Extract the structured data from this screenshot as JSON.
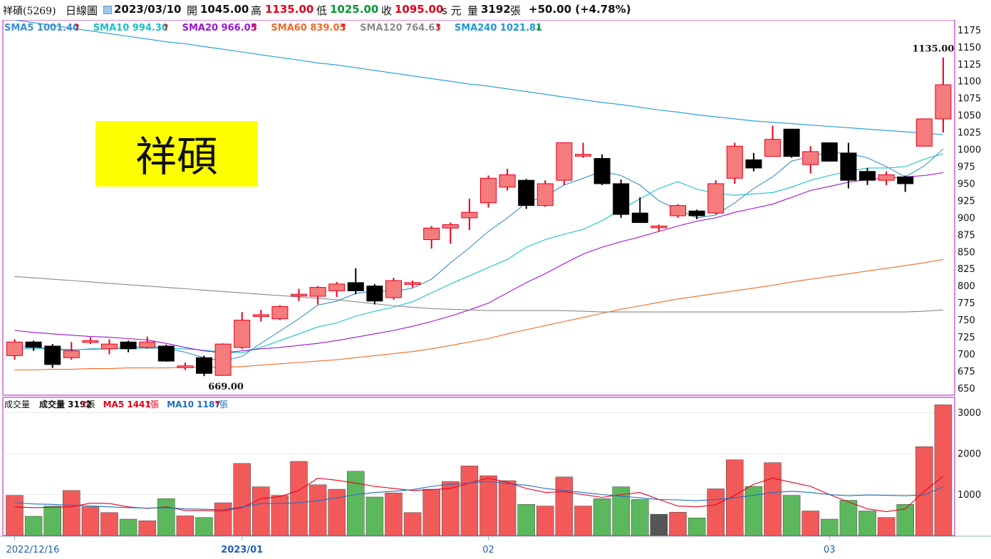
{
  "header": {
    "symbol": "祥碩(5269)",
    "period": "日線圖",
    "date": "2023/03/10",
    "open_label": "開",
    "open": "1045.00",
    "high_label": "高",
    "high": "1135.00",
    "low_label": "低",
    "low": "1025.00",
    "close_label": "收",
    "close": "1095.00",
    "unit_label": "s 元",
    "volume_label": "量",
    "volume": "3192",
    "volume_unit": "張",
    "change": "+50.00 (+4.78%)"
  },
  "watermark": "祥碩",
  "colors": {
    "up": "#f47c7c",
    "up_edge": "#e8001c",
    "down": "#000000",
    "vol_up": "#f25a5a",
    "vol_down": "#5cb85c",
    "vol_flat": "#555555",
    "sma5": "#3a8fd0",
    "sma10": "#19c2c8",
    "sma20": "#9b15d6",
    "sma60": "#f06a26",
    "sma120": "#8a8a8a",
    "sma240": "#1c9ad6",
    "vma5": "#e8001c",
    "vma10": "#1f6fbf",
    "frame": "#c03bc0",
    "watermark_bg": "#ffff00"
  },
  "legend": [
    {
      "label": "SMA5 1001.40",
      "arrow": "↑",
      "color_key": "sma5"
    },
    {
      "label": "SMA10 994.30",
      "arrow": "↑",
      "color_key": "sma10"
    },
    {
      "label": "SMA20 966.05",
      "arrow": "↑",
      "color_key": "sma20"
    },
    {
      "label": "SMA60 839.05",
      "arrow": "↑",
      "color_key": "sma60"
    },
    {
      "label": "SMA120 764.63",
      "arrow": "↑",
      "color_key": "sma120"
    },
    {
      "label": "SMA240 1021.81",
      "arrow": "↓",
      "color_key": "sma240"
    }
  ],
  "volume_legend": {
    "title": "成交量",
    "items": [
      {
        "label": "成交量 3192",
        "arrow": "↑",
        "unit": "張",
        "color": "#111111"
      },
      {
        "label": "MA5 1441",
        "arrow": "↑",
        "unit": "張",
        "color": "#e8001c"
      },
      {
        "label": "MA10 1187",
        "arrow": "↑",
        "unit": "張",
        "color": "#1f6fbf"
      }
    ]
  },
  "chart_data": {
    "type": "candlestick",
    "price_axis": {
      "ticks": [
        650,
        675,
        700,
        725,
        750,
        775,
        800,
        825,
        850,
        875,
        900,
        925,
        950,
        975,
        1000,
        1025,
        1050,
        1075,
        1100,
        1125,
        1150,
        1175
      ],
      "range": [
        640,
        1190
      ]
    },
    "volume_axis": {
      "ticks": [
        1000,
        2000,
        3000
      ],
      "range": [
        0,
        3200
      ]
    },
    "x_labels": [
      {
        "index": 0,
        "text": "2022/12/16"
      },
      {
        "index": 12,
        "text": "2023/01"
      },
      {
        "index": 25,
        "text": "02"
      },
      {
        "index": 43,
        "text": "03"
      }
    ],
    "annotations": [
      {
        "index": 49,
        "value": 1135,
        "text": "1135.00",
        "anchor": "above"
      },
      {
        "index": 11,
        "value": 669,
        "text": "669.00",
        "anchor": "below"
      }
    ],
    "candles": [
      {
        "o": 698,
        "h": 722,
        "l": 692,
        "c": 718
      },
      {
        "o": 718,
        "h": 720,
        "l": 705,
        "c": 710
      },
      {
        "o": 712,
        "h": 715,
        "l": 680,
        "c": 685
      },
      {
        "o": 695,
        "h": 718,
        "l": 692,
        "c": 705
      },
      {
        "o": 720,
        "h": 725,
        "l": 715,
        "c": 720
      },
      {
        "o": 708,
        "h": 722,
        "l": 700,
        "c": 715
      },
      {
        "o": 718,
        "h": 720,
        "l": 703,
        "c": 708
      },
      {
        "o": 710,
        "h": 726,
        "l": 708,
        "c": 718
      },
      {
        "o": 712,
        "h": 714,
        "l": 689,
        "c": 690
      },
      {
        "o": 683,
        "h": 688,
        "l": 677,
        "c": 683
      },
      {
        "o": 695,
        "h": 698,
        "l": 668,
        "c": 672
      },
      {
        "o": 669,
        "h": 716,
        "l": 669,
        "c": 715
      },
      {
        "o": 710,
        "h": 762,
        "l": 708,
        "c": 750
      },
      {
        "o": 758,
        "h": 765,
        "l": 748,
        "c": 758
      },
      {
        "o": 752,
        "h": 772,
        "l": 750,
        "c": 770
      },
      {
        "o": 788,
        "h": 796,
        "l": 778,
        "c": 788
      },
      {
        "o": 785,
        "h": 800,
        "l": 773,
        "c": 798
      },
      {
        "o": 793,
        "h": 806,
        "l": 784,
        "c": 803
      },
      {
        "o": 805,
        "h": 826,
        "l": 788,
        "c": 793
      },
      {
        "o": 800,
        "h": 803,
        "l": 773,
        "c": 778
      },
      {
        "o": 783,
        "h": 812,
        "l": 780,
        "c": 808
      },
      {
        "o": 805,
        "h": 808,
        "l": 798,
        "c": 805
      },
      {
        "o": 868,
        "h": 888,
        "l": 855,
        "c": 885
      },
      {
        "o": 885,
        "h": 893,
        "l": 862,
        "c": 890
      },
      {
        "o": 900,
        "h": 928,
        "l": 882,
        "c": 908
      },
      {
        "o": 922,
        "h": 962,
        "l": 915,
        "c": 958
      },
      {
        "o": 945,
        "h": 972,
        "l": 940,
        "c": 963
      },
      {
        "o": 955,
        "h": 957,
        "l": 913,
        "c": 918
      },
      {
        "o": 918,
        "h": 955,
        "l": 916,
        "c": 950
      },
      {
        "o": 955,
        "h": 1010,
        "l": 948,
        "c": 1010
      },
      {
        "o": 993,
        "h": 1010,
        "l": 988,
        "c": 993
      },
      {
        "o": 987,
        "h": 993,
        "l": 948,
        "c": 950
      },
      {
        "o": 950,
        "h": 956,
        "l": 900,
        "c": 905
      },
      {
        "o": 907,
        "h": 930,
        "l": 893,
        "c": 893
      },
      {
        "o": 888,
        "h": 890,
        "l": 880,
        "c": 888
      },
      {
        "o": 903,
        "h": 920,
        "l": 900,
        "c": 918
      },
      {
        "o": 910,
        "h": 912,
        "l": 898,
        "c": 903
      },
      {
        "o": 907,
        "h": 955,
        "l": 905,
        "c": 950
      },
      {
        "o": 958,
        "h": 1010,
        "l": 950,
        "c": 1005
      },
      {
        "o": 985,
        "h": 995,
        "l": 968,
        "c": 973
      },
      {
        "o": 990,
        "h": 1035,
        "l": 990,
        "c": 1015
      },
      {
        "o": 1030,
        "h": 1030,
        "l": 988,
        "c": 990
      },
      {
        "o": 978,
        "h": 1005,
        "l": 965,
        "c": 997
      },
      {
        "o": 1010,
        "h": 1010,
        "l": 983,
        "c": 983
      },
      {
        "o": 995,
        "h": 1010,
        "l": 943,
        "c": 955
      },
      {
        "o": 968,
        "h": 973,
        "l": 948,
        "c": 955
      },
      {
        "o": 955,
        "h": 968,
        "l": 948,
        "c": 963
      },
      {
        "o": 960,
        "h": 962,
        "l": 938,
        "c": 950
      },
      {
        "o": 1005,
        "h": 1045,
        "l": 1005,
        "c": 1045
      },
      {
        "o": 1045,
        "h": 1135,
        "l": 1025,
        "c": 1095
      }
    ],
    "volume": [
      980,
      470,
      720,
      1100,
      700,
      560,
      400,
      360,
      900,
      480,
      440,
      800,
      1760,
      1190,
      980,
      1810,
      1240,
      1130,
      1570,
      940,
      1040,
      560,
      1130,
      1320,
      1700,
      1460,
      1340,
      760,
      720,
      1430,
      720,
      900,
      1190,
      880,
      520,
      570,
      430,
      1140,
      1850,
      1200,
      1780,
      980,
      600,
      400,
      860,
      600,
      440,
      760,
      2170,
      3192
    ],
    "volume_flat_index": 34,
    "series": [
      {
        "name": "SMA5",
        "color_key": "sma5",
        "values": [
          712,
          711,
          707,
          706,
          708,
          708,
          710,
          712,
          709,
          703,
          695,
          690,
          697,
          716,
          734,
          752,
          772,
          778,
          789,
          793,
          792,
          797,
          810,
          834,
          856,
          880,
          900,
          922,
          932,
          948,
          958,
          968,
          962,
          948,
          925,
          912,
          900,
          904,
          922,
          943,
          960,
          983,
          990,
          996,
          994,
          988,
          975,
          960,
          976,
          1001
        ]
      },
      {
        "name": "SMA10",
        "color_key": "sma10",
        "values": [
          708,
          708,
          708,
          707,
          707,
          708,
          709,
          709,
          709,
          708,
          706,
          703,
          702,
          710,
          720,
          730,
          740,
          746,
          756,
          763,
          769,
          777,
          790,
          803,
          815,
          827,
          839,
          857,
          868,
          876,
          883,
          896,
          912,
          928,
          943,
          953,
          942,
          936,
          933,
          935,
          937,
          945,
          955,
          962,
          968,
          973,
          973,
          975,
          986,
          994
        ]
      },
      {
        "name": "SMA20",
        "color_key": "sma20",
        "values": [
          735,
          732,
          730,
          728,
          726,
          725,
          723,
          721,
          716,
          710,
          705,
          702,
          705,
          708,
          710,
          713,
          716,
          720,
          725,
          730,
          735,
          741,
          748,
          756,
          765,
          775,
          790,
          805,
          818,
          833,
          847,
          857,
          865,
          872,
          880,
          888,
          895,
          900,
          908,
          914,
          920,
          930,
          940,
          946,
          952,
          956,
          958,
          960,
          962,
          966
        ]
      },
      {
        "name": "SMA60",
        "color_key": "sma60",
        "values": [
          677,
          677,
          678,
          678,
          679,
          679,
          680,
          680,
          680,
          681,
          681,
          681,
          682,
          684,
          686,
          688,
          690,
          692,
          695,
          698,
          701,
          704,
          708,
          713,
          718,
          723,
          730,
          736,
          742,
          748,
          754,
          760,
          766,
          771,
          776,
          781,
          785,
          789,
          793,
          797,
          801,
          806,
          810,
          814,
          818,
          822,
          826,
          830,
          834,
          839
        ]
      },
      {
        "name": "SMA120",
        "color_key": "sma120",
        "values": [
          814,
          812,
          810,
          808,
          806,
          804,
          802,
          800,
          798,
          796,
          794,
          792,
          790,
          788,
          786,
          784,
          782,
          780,
          777,
          774,
          771,
          769,
          767,
          766,
          765,
          764,
          764,
          764,
          764,
          764,
          763,
          762,
          762,
          762,
          762,
          762,
          762,
          762,
          762,
          762,
          762,
          762,
          762,
          762,
          762,
          762,
          762,
          762,
          763,
          765
        ]
      },
      {
        "name": "SMA240",
        "color_key": "sma240",
        "values": [
          1190,
          1186,
          1182,
          1178,
          1174,
          1170,
          1166,
          1162,
          1158,
          1155,
          1151,
          1147,
          1143,
          1139,
          1135,
          1131,
          1127,
          1124,
          1120,
          1116,
          1112,
          1108,
          1104,
          1100,
          1096,
          1093,
          1089,
          1085,
          1081,
          1077,
          1073,
          1069,
          1066,
          1062,
          1058,
          1055,
          1051,
          1048,
          1045,
          1042,
          1040,
          1038,
          1036,
          1034,
          1032,
          1030,
          1028,
          1026,
          1024,
          1022
        ]
      },
      {
        "name": "MA5",
        "color_key": "vma5",
        "values": [
          700,
          680,
          690,
          700,
          790,
          780,
          700,
          660,
          700,
          610,
          610,
          600,
          680,
          900,
          950,
          1100,
          1400,
          1350,
          1280,
          1200,
          1150,
          1100,
          1120,
          1150,
          1280,
          1400,
          1300,
          1150,
          1050,
          1070,
          1000,
          930,
          1000,
          1050,
          880,
          720,
          700,
          750,
          980,
          1250,
          1400,
          1300,
          1200,
          1000,
          820,
          650,
          580,
          650,
          1080,
          1441
        ]
      },
      {
        "name": "MA10",
        "color_key": "vma10",
        "values": [
          800,
          770,
          760,
          740,
          720,
          700,
          680,
          670,
          680,
          650,
          640,
          630,
          700,
          780,
          780,
          800,
          850,
          920,
          1000,
          1050,
          1080,
          1120,
          1200,
          1250,
          1280,
          1320,
          1270,
          1230,
          1150,
          1100,
          1050,
          1000,
          960,
          920,
          880,
          870,
          850,
          880,
          920,
          980,
          1050,
          1080,
          1050,
          1000,
          970,
          990,
          980,
          970,
          990,
          1187
        ]
      }
    ]
  }
}
